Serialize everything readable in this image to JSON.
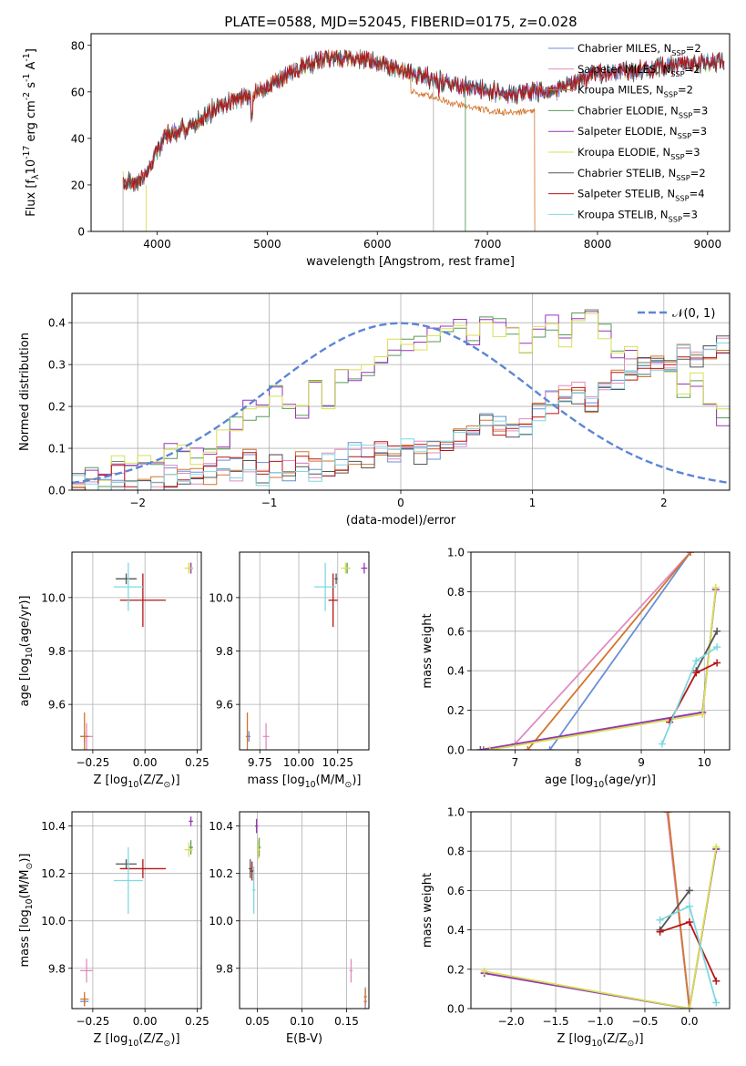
{
  "figure": {
    "title": "PLATE=0588, MJD=52045, FIBERID=0175, z=0.028"
  },
  "models": [
    {
      "label": "Chabrier MILES, N$_{SSP}$=2",
      "color": "#6a8fd8"
    },
    {
      "label": "Salpeter MILES, N$_{SSP}$=2",
      "color": "#e08cc0"
    },
    {
      "label": "Kroupa MILES, N$_{SSP}$=2",
      "color": "#d2752f"
    },
    {
      "label": "Chabrier ELODIE, N$_{SSP}$=3",
      "color": "#5a9a5a"
    },
    {
      "label": "Salpeter ELODIE, N$_{SSP}$=3",
      "color": "#9a35b8"
    },
    {
      "label": "Kroupa ELODIE, N$_{SSP}$=3",
      "color": "#d8df55"
    },
    {
      "label": "Chabrier STELIB, N$_{SSP}$=2",
      "color": "#555555"
    },
    {
      "label": "Salpeter STELIB, N$_{SSP}$=4",
      "color": "#b81515"
    },
    {
      "label": "Kroupa STELIB, N$_{SSP}$=3",
      "color": "#7fd8e0"
    }
  ],
  "chart_data": [
    {
      "id": "spectrum",
      "type": "line",
      "xlabel": "wavelength [Angstrom, rest frame]",
      "ylabel": "Flux [f$_\\lambda$10$^{-17}$ erg cm$^{-2}$ s$^{-1}$ A$^{-1}$]",
      "xlim": [
        3400,
        9200
      ],
      "ylim": [
        0,
        85
      ],
      "xticks": [
        4000,
        5000,
        6000,
        7000,
        8000,
        9000
      ],
      "yticks": [
        0,
        20,
        40,
        60,
        80
      ],
      "grid": false,
      "legend": "right",
      "continuum": {
        "x": [
          3690,
          3800,
          3900,
          4000,
          4100,
          4300,
          4500,
          4700,
          5000,
          5200,
          5500,
          5800,
          6000,
          6300,
          6500,
          6700,
          6800,
          7000,
          7200,
          7400,
          7600,
          8000,
          8500,
          8800,
          9150
        ],
        "y": [
          22,
          20,
          25,
          35,
          42,
          45,
          52,
          56,
          62,
          68,
          74,
          75,
          72,
          68,
          66,
          63,
          62,
          60,
          59,
          60,
          60,
          68,
          70,
          72,
          73
        ]
      },
      "truncated_model": {
        "x_end": 7430,
        "y": [
          22,
          20,
          25,
          35,
          42,
          45,
          52,
          56,
          62,
          68,
          74,
          75,
          72,
          68,
          66,
          63,
          62,
          60,
          59,
          60
        ]
      }
    },
    {
      "id": "residuals",
      "type": "histogram",
      "xlabel": "(data-model)/error",
      "ylabel": "Normed distribution",
      "xlim": [
        -2.5,
        2.5
      ],
      "ylim": [
        0,
        0.47
      ],
      "xticks": [
        -2,
        -1,
        0,
        1,
        2
      ],
      "yticks": [
        0.0,
        0.1,
        0.2,
        0.3,
        0.4
      ],
      "grid": true,
      "legend": "top-right",
      "gaussian_label": "$\\mathcal{N}(0,1)$",
      "bin_width": 0.1,
      "group_a": [
        0.02,
        0.05,
        0.03,
        0.06,
        0.06,
        0.08,
        0.06,
        0.09,
        0.09,
        0.08,
        0.1,
        0.12,
        0.16,
        0.19,
        0.19,
        0.23,
        0.2,
        0.19,
        0.25,
        0.2,
        0.27,
        0.27,
        0.29,
        0.31,
        0.34,
        0.34,
        0.36,
        0.37,
        0.4,
        0.4,
        0.37,
        0.39,
        0.39,
        0.37,
        0.34,
        0.38,
        0.4,
        0.36,
        0.42,
        0.41,
        0.38,
        0.34,
        0.33,
        0.3,
        0.29,
        0.27,
        0.24,
        0.26,
        0.2,
        0.17,
        0.17,
        0.12,
        0.13,
        0.1,
        0.09,
        0.08,
        0.07,
        0.05,
        0.08,
        0.05,
        0.07,
        0.05,
        0.07,
        0.06,
        0.09,
        0.08,
        0.07,
        0.06,
        0.04,
        0.04,
        0.05,
        0.04,
        0.03,
        0.02,
        0.03,
        0.02,
        0.03,
        0.03,
        0.02,
        0.01,
        0.02,
        0.01,
        0.02,
        0.02,
        0.02,
        0.03,
        0.03,
        0.02,
        0.02,
        0.03,
        0.02,
        0.02,
        0.02,
        0.01,
        0.02,
        0.01,
        0.01,
        0.02,
        0.01,
        0.02
      ],
      "group_b": [
        0.01,
        0.01,
        0.01,
        0.03,
        0.01,
        0.02,
        0.02,
        0.03,
        0.04,
        0.03,
        0.04,
        0.05,
        0.05,
        0.07,
        0.04,
        0.06,
        0.05,
        0.07,
        0.05,
        0.06,
        0.07,
        0.09,
        0.08,
        0.11,
        0.08,
        0.12,
        0.09,
        0.1,
        0.11,
        0.13,
        0.14,
        0.17,
        0.15,
        0.13,
        0.15,
        0.19,
        0.21,
        0.24,
        0.23,
        0.21,
        0.24,
        0.27,
        0.29,
        0.3,
        0.3,
        0.3,
        0.33,
        0.32,
        0.33,
        0.35,
        0.37,
        0.35,
        0.36,
        0.36,
        0.35,
        0.34,
        0.37,
        0.34,
        0.37,
        0.36,
        0.37,
        0.33,
        0.34,
        0.33,
        0.32,
        0.35,
        0.34,
        0.36,
        0.38,
        0.4,
        0.32,
        0.31,
        0.31,
        0.29,
        0.29,
        0.27,
        0.29,
        0.25,
        0.26,
        0.22,
        0.21,
        0.22,
        0.24,
        0.23,
        0.21,
        0.2,
        0.22,
        0.19,
        0.2,
        0.16,
        0.14,
        0.16,
        0.13,
        0.16,
        0.15,
        0.13,
        0.14,
        0.13,
        0.12,
        0.11
      ]
    },
    {
      "id": "age-vs-Z",
      "type": "errorbar",
      "xlabel": "Z [log$_{10}$(Z/Z$_\\odot$)]",
      "ylabel": "age  [log$_{10}$(age/yr)]",
      "xlim": [
        -0.35,
        0.27
      ],
      "ylim": [
        9.43,
        10.17
      ],
      "xticks": [
        -0.25,
        0.0,
        0.25
      ],
      "xticklabels": [
        "−0.25",
        "0.00",
        "0.25"
      ],
      "yticks": [
        9.6,
        9.8,
        10.0
      ],
      "yticklabels": [
        "9.6",
        "9.8",
        "10.0"
      ],
      "grid": true,
      "points": [
        {
          "model": 0,
          "x": -0.29,
          "y": 9.48,
          "xerr": 0.02,
          "yerr": 0.02
        },
        {
          "model": 1,
          "x": -0.28,
          "y": 9.48,
          "xerr": 0.03,
          "yerr": 0.05
        },
        {
          "model": 2,
          "x": -0.29,
          "y": 9.48,
          "xerr": 0.02,
          "yerr": 0.09
        },
        {
          "model": 3,
          "x": 0.22,
          "y": 10.11,
          "xerr": 0.01,
          "yerr": 0.02
        },
        {
          "model": 4,
          "x": 0.22,
          "y": 10.11,
          "xerr": 0.01,
          "yerr": 0.02
        },
        {
          "model": 5,
          "x": 0.21,
          "y": 10.11,
          "xerr": 0.02,
          "yerr": 0.02
        },
        {
          "model": 6,
          "x": -0.09,
          "y": 10.07,
          "xerr": 0.05,
          "yerr": 0.02
        },
        {
          "model": 7,
          "x": -0.01,
          "y": 9.99,
          "xerr": 0.11,
          "yerr": 0.1
        },
        {
          "model": 8,
          "x": -0.08,
          "y": 10.04,
          "xerr": 0.07,
          "yerr": 0.09
        }
      ]
    },
    {
      "id": "age-vs-mass",
      "type": "errorbar",
      "xlabel": "mass [log$_{10}$(M/M$_\\odot$)]",
      "ylabel": "",
      "xlim": [
        9.62,
        10.45
      ],
      "ylim": [
        9.43,
        10.17
      ],
      "xticks": [
        9.75,
        10.0,
        10.25
      ],
      "xticklabels": [
        "9.75",
        "10.00",
        "10.25"
      ],
      "yticks": [
        9.6,
        9.8,
        10.0
      ],
      "yticklabels": [
        "9.6",
        "9.8",
        "10.0"
      ],
      "grid": true,
      "points": [
        {
          "model": 0,
          "x": 9.68,
          "y": 9.48,
          "xerr": 0.01,
          "yerr": 0.02
        },
        {
          "model": 1,
          "x": 9.79,
          "y": 9.48,
          "xerr": 0.02,
          "yerr": 0.05
        },
        {
          "model": 2,
          "x": 9.67,
          "y": 9.48,
          "xerr": 0.01,
          "yerr": 0.09
        },
        {
          "model": 3,
          "x": 10.31,
          "y": 10.11,
          "xerr": 0.02,
          "yerr": 0.02
        },
        {
          "model": 4,
          "x": 10.42,
          "y": 10.11,
          "xerr": 0.02,
          "yerr": 0.02
        },
        {
          "model": 5,
          "x": 10.3,
          "y": 10.11,
          "xerr": 0.03,
          "yerr": 0.02
        },
        {
          "model": 6,
          "x": 10.24,
          "y": 10.07,
          "xerr": 0.01,
          "yerr": 0.02
        },
        {
          "model": 7,
          "x": 10.22,
          "y": 9.99,
          "xerr": 0.03,
          "yerr": 0.1
        },
        {
          "model": 8,
          "x": 10.17,
          "y": 10.04,
          "xerr": 0.07,
          "yerr": 0.09
        }
      ]
    },
    {
      "id": "weight-vs-age",
      "type": "line",
      "xlabel": "age  [log$_{10}$(age/yr)]",
      "ylabel": "mass weight",
      "xlim": [
        6.3,
        10.4
      ],
      "ylim": [
        0,
        1
      ],
      "xticks": [
        7,
        8,
        9,
        10
      ],
      "xticklabels": [
        "7",
        "8",
        "9",
        "10"
      ],
      "yticks": [
        0,
        0.2,
        0.4,
        0.6,
        0.8,
        1.0
      ],
      "yticklabels": [
        "0.0",
        "0.2",
        "0.4",
        "0.6",
        "0.8",
        "1.0"
      ],
      "grid": true,
      "series": [
        {
          "model": 0,
          "x": [
            7.55,
            9.78
          ],
          "y": [
            0.0,
            1.0
          ]
        },
        {
          "model": 1,
          "x": [
            7.0,
            9.78
          ],
          "y": [
            0.03,
            1.0
          ]
        },
        {
          "model": 2,
          "x": [
            7.2,
            9.78
          ],
          "y": [
            0.0,
            1.0
          ]
        },
        {
          "model": 3,
          "x": [
            6.5,
            9.97,
            10.18
          ],
          "y": [
            0.0,
            0.19,
            0.81
          ]
        },
        {
          "model": 4,
          "x": [
            6.45,
            9.97,
            10.18
          ],
          "y": [
            0.0,
            0.19,
            0.81
          ]
        },
        {
          "model": 5,
          "x": [
            6.6,
            9.97,
            10.18
          ],
          "y": [
            0.0,
            0.18,
            0.82
          ]
        },
        {
          "model": 6,
          "x": [
            9.87,
            10.2
          ],
          "y": [
            0.4,
            0.6
          ]
        },
        {
          "model": 7,
          "x": [
            9.45,
            9.87,
            10.2
          ],
          "y": [
            0.14,
            0.39,
            0.44
          ]
        },
        {
          "model": 8,
          "x": [
            9.33,
            9.87,
            10.2
          ],
          "y": [
            0.03,
            0.45,
            0.52
          ]
        }
      ]
    },
    {
      "id": "mass-vs-Z",
      "type": "errorbar",
      "xlabel": "Z [log$_{10}$(Z/Z$_\\odot$)]",
      "ylabel": "mass [log$_{10}$(M/M$_\\odot$)]",
      "xlim": [
        -0.35,
        0.27
      ],
      "ylim": [
        9.63,
        10.46
      ],
      "xticks": [
        -0.25,
        0.0,
        0.25
      ],
      "xticklabels": [
        "−0.25",
        "0.00",
        "0.25"
      ],
      "yticks": [
        9.8,
        10.0,
        10.2,
        10.4
      ],
      "yticklabels": [
        "9.8",
        "10.0",
        "10.2",
        "10.4"
      ],
      "grid": true,
      "points": [
        {
          "model": 0,
          "x": -0.29,
          "y": 9.66,
          "xerr": 0.02,
          "yerr": 0.02
        },
        {
          "model": 1,
          "x": -0.28,
          "y": 9.79,
          "xerr": 0.03,
          "yerr": 0.05
        },
        {
          "model": 2,
          "x": -0.29,
          "y": 9.67,
          "xerr": 0.02,
          "yerr": 0.03
        },
        {
          "model": 3,
          "x": 0.22,
          "y": 10.31,
          "xerr": 0.01,
          "yerr": 0.03
        },
        {
          "model": 4,
          "x": 0.22,
          "y": 10.42,
          "xerr": 0.01,
          "yerr": 0.02
        },
        {
          "model": 5,
          "x": 0.21,
          "y": 10.3,
          "xerr": 0.02,
          "yerr": 0.03
        },
        {
          "model": 6,
          "x": -0.09,
          "y": 10.24,
          "xerr": 0.05,
          "yerr": 0.02
        },
        {
          "model": 7,
          "x": -0.01,
          "y": 10.22,
          "xerr": 0.11,
          "yerr": 0.04
        },
        {
          "model": 8,
          "x": -0.08,
          "y": 10.17,
          "xerr": 0.07,
          "yerr": 0.14
        }
      ]
    },
    {
      "id": "mass-vs-EBV",
      "type": "errorbar",
      "xlabel": "E(B-V)",
      "ylabel": "",
      "xlim": [
        0.03,
        0.175
      ],
      "ylim": [
        9.63,
        10.46
      ],
      "xticks": [
        0.05,
        0.1,
        0.15
      ],
      "xticklabels": [
        "0.05",
        "0.10",
        "0.15"
      ],
      "yticks": [
        9.8,
        10.0,
        10.2,
        10.4
      ],
      "yticklabels": [
        "9.8",
        "10.0",
        "10.2",
        "10.4"
      ],
      "grid": true,
      "points": [
        {
          "model": 0,
          "x": 0.171,
          "y": 9.66,
          "xerr": 0.0,
          "yerr": 0.05
        },
        {
          "model": 1,
          "x": 0.155,
          "y": 9.79,
          "xerr": 0.0,
          "yerr": 0.05
        },
        {
          "model": 2,
          "x": 0.171,
          "y": 9.68,
          "xerr": 0.0,
          "yerr": 0.04
        },
        {
          "model": 3,
          "x": 0.052,
          "y": 10.31,
          "xerr": 0.0,
          "yerr": 0.04
        },
        {
          "model": 4,
          "x": 0.049,
          "y": 10.4,
          "xerr": 0.0,
          "yerr": 0.03
        },
        {
          "model": 5,
          "x": 0.051,
          "y": 10.3,
          "xerr": 0.0,
          "yerr": 0.04
        },
        {
          "model": 6,
          "x": 0.042,
          "y": 10.22,
          "xerr": 0.0,
          "yerr": 0.04
        },
        {
          "model": 7,
          "x": 0.044,
          "y": 10.21,
          "xerr": 0.0,
          "yerr": 0.04
        },
        {
          "model": 8,
          "x": 0.046,
          "y": 10.13,
          "xerr": 0.0,
          "yerr": 0.1
        }
      ]
    },
    {
      "id": "weight-vs-Z",
      "type": "line",
      "xlabel": "Z [log$_{10}$(Z/Z$_\\odot$)]",
      "ylabel": "mass weight",
      "xlim": [
        -2.45,
        0.45
      ],
      "ylim": [
        0,
        1
      ],
      "xticks": [
        -2.0,
        -1.5,
        -1.0,
        -0.5,
        0.0
      ],
      "xticklabels": [
        "−2.0",
        "−1.5",
        "−1.0",
        "−0.5",
        "0.0"
      ],
      "yticks": [
        0,
        0.2,
        0.4,
        0.6,
        0.8,
        1.0
      ],
      "yticklabels": [
        "0.0",
        "0.2",
        "0.4",
        "0.6",
        "0.8",
        "1.0"
      ],
      "grid": true,
      "series": [
        {
          "model": 0,
          "x": [
            -0.25,
            0.0
          ],
          "y": [
            1.0,
            0.0
          ]
        },
        {
          "model": 1,
          "x": [
            -0.25,
            0.0
          ],
          "y": [
            1.0,
            0.0
          ]
        },
        {
          "model": 2,
          "x": [
            -0.24,
            0.0
          ],
          "y": [
            1.0,
            0.0
          ]
        },
        {
          "model": 3,
          "x": [
            -2.3,
            0.0,
            0.3
          ],
          "y": [
            0.18,
            0.0,
            0.81
          ]
        },
        {
          "model": 4,
          "x": [
            -2.3,
            0.0,
            0.3
          ],
          "y": [
            0.18,
            0.0,
            0.81
          ]
        },
        {
          "model": 5,
          "x": [
            -2.3,
            0.0,
            0.3
          ],
          "y": [
            0.19,
            0.0,
            0.82
          ]
        },
        {
          "model": 6,
          "x": [
            -0.33,
            0.0
          ],
          "y": [
            0.4,
            0.6
          ]
        },
        {
          "model": 7,
          "x": [
            -0.33,
            0.0,
            0.3
          ],
          "y": [
            0.39,
            0.44,
            0.14
          ]
        },
        {
          "model": 8,
          "x": [
            -0.33,
            0.0,
            0.3
          ],
          "y": [
            0.45,
            0.52,
            0.03
          ]
        }
      ]
    }
  ]
}
